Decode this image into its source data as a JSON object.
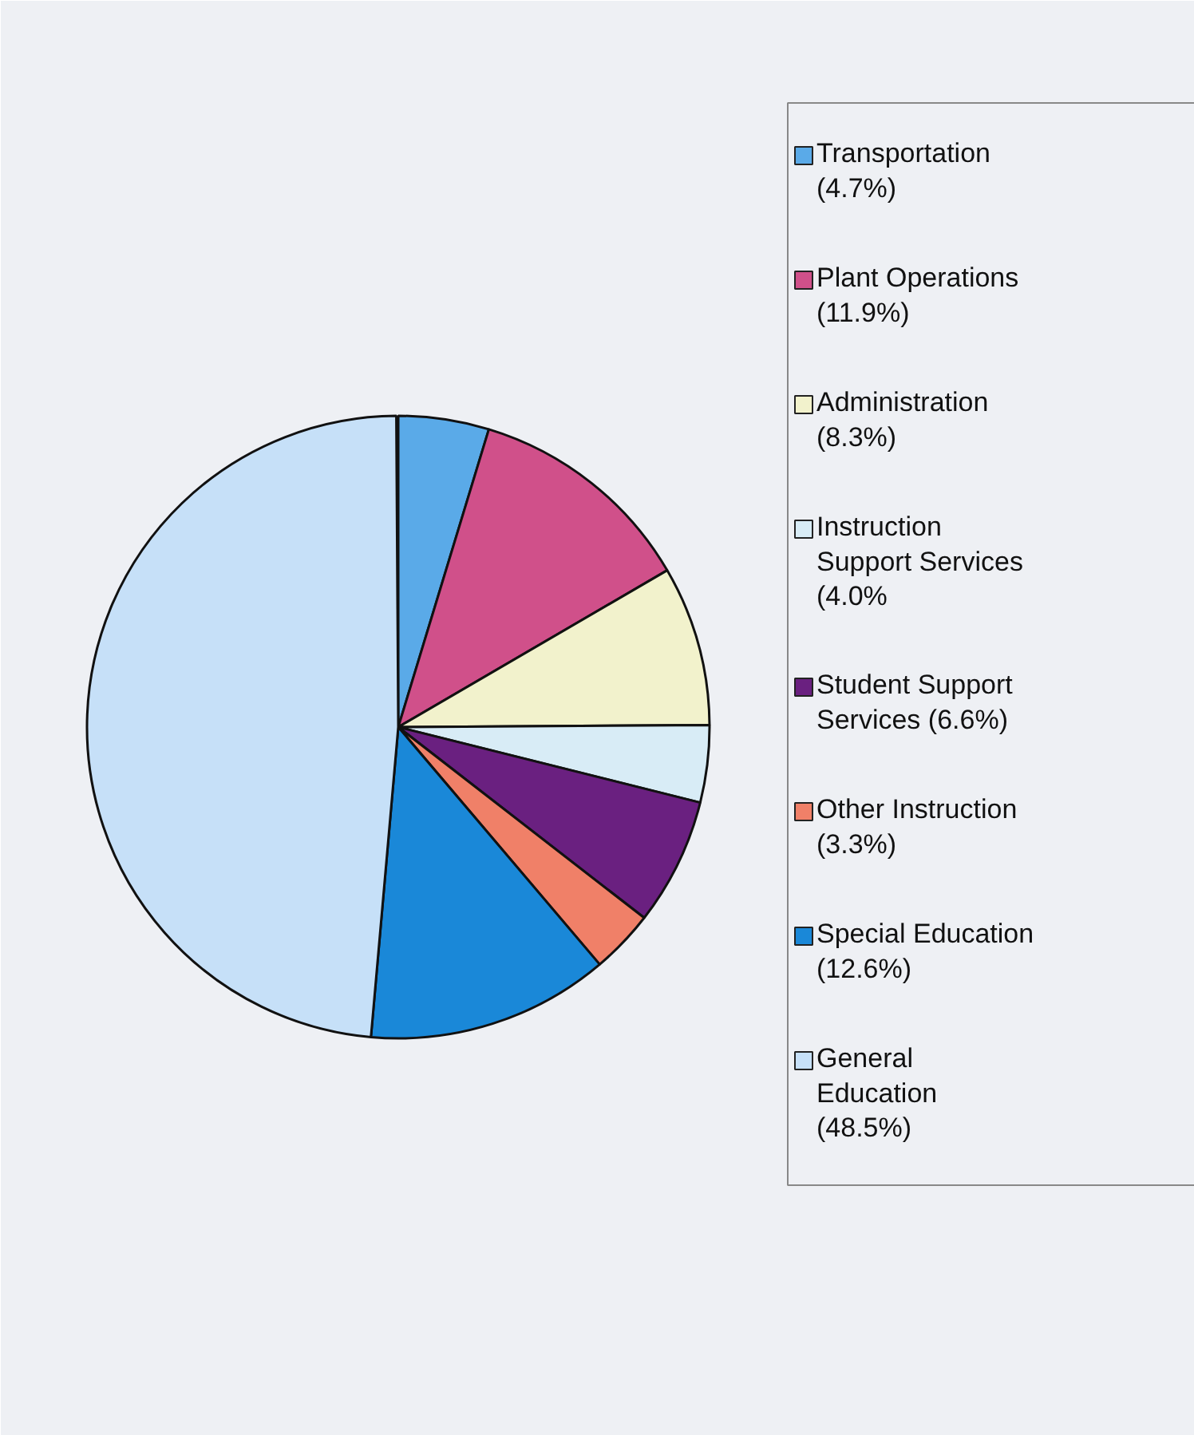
{
  "chart_data": {
    "type": "pie",
    "categories": [
      "Transportation\n(4.7%)",
      "Plant Operations\n(11.9%)",
      "Administration\n(8.3%)",
      "Instruction\nSupport Services\n(4.0%",
      "Student Support\nServices (6.6%)",
      "Other Instruction\n(3.3%)",
      "Special Education\n(12.6%)",
      "General\nEducation\n(48.5%)"
    ],
    "values": [
      4.7,
      11.9,
      8.3,
      4.0,
      6.6,
      3.3,
      12.6,
      48.5
    ],
    "colors": [
      "#5aaae8",
      "#d0508a",
      "#f2f2cc",
      "#d8ecf6",
      "#6a2080",
      "#f08068",
      "#1a88d8",
      "#c6e0f8"
    ],
    "legend": "right"
  }
}
